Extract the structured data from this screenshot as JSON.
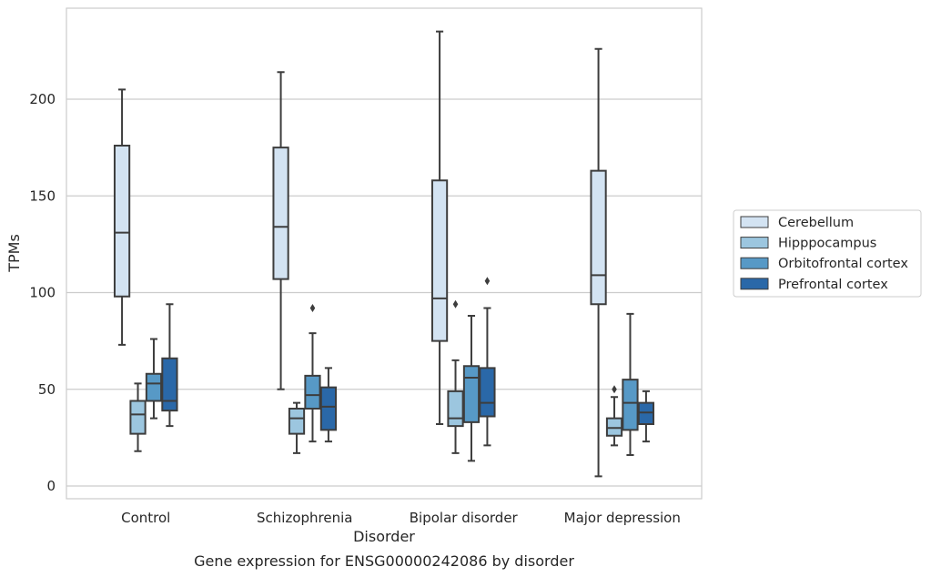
{
  "chart_data": {
    "type": "box",
    "caption": "Gene expression for ENSG00000242086 by disorder",
    "xlabel": "Disorder",
    "ylabel": "TPMs",
    "ylim": [
      -6,
      247
    ],
    "yticks": [
      0,
      50,
      100,
      150,
      200
    ],
    "grid": "horizontal",
    "legend_position": "right",
    "categories": [
      "Control",
      "Schizophrenia",
      "Bipolar disorder",
      "Major depression"
    ],
    "series": [
      {
        "name": "Cerebellum",
        "color": "#d3e3f2",
        "boxes": [
          {
            "whisker_low": 73,
            "q1": 98,
            "median": 131,
            "q3": 176,
            "whisker_high": 205,
            "outliers": []
          },
          {
            "whisker_low": 50,
            "q1": 107,
            "median": 134,
            "q3": 175,
            "whisker_high": 214,
            "outliers": []
          },
          {
            "whisker_low": 32,
            "q1": 75,
            "median": 97,
            "q3": 158,
            "whisker_high": 235,
            "outliers": []
          },
          {
            "whisker_low": 5,
            "q1": 94,
            "median": 109,
            "q3": 163,
            "whisker_high": 226,
            "outliers": []
          }
        ]
      },
      {
        "name": "Hipppocampus",
        "color": "#9cc6df",
        "boxes": [
          {
            "whisker_low": 18,
            "q1": 27,
            "median": 37,
            "q3": 44,
            "whisker_high": 53,
            "outliers": []
          },
          {
            "whisker_low": 17,
            "q1": 27,
            "median": 35,
            "q3": 40,
            "whisker_high": 43,
            "outliers": []
          },
          {
            "whisker_low": 17,
            "q1": 31,
            "median": 35,
            "q3": 49,
            "whisker_high": 65,
            "outliers": [
              94
            ]
          },
          {
            "whisker_low": 21,
            "q1": 26,
            "median": 30,
            "q3": 35,
            "whisker_high": 46,
            "outliers": [
              50
            ]
          }
        ]
      },
      {
        "name": "Orbitofrontal cortex",
        "color": "#5799c6",
        "boxes": [
          {
            "whisker_low": 35,
            "q1": 44,
            "median": 53,
            "q3": 58,
            "whisker_high": 76,
            "outliers": []
          },
          {
            "whisker_low": 23,
            "q1": 40,
            "median": 47,
            "q3": 57,
            "whisker_high": 79,
            "outliers": [
              92
            ]
          },
          {
            "whisker_low": 13,
            "q1": 33,
            "median": 56,
            "q3": 62,
            "whisker_high": 88,
            "outliers": []
          },
          {
            "whisker_low": 16,
            "q1": 29,
            "median": 43,
            "q3": 55,
            "whisker_high": 89,
            "outliers": []
          }
        ]
      },
      {
        "name": "Prefrontal cortex",
        "color": "#2a68a8",
        "boxes": [
          {
            "whisker_low": 31,
            "q1": 39,
            "median": 44,
            "q3": 66,
            "whisker_high": 94,
            "outliers": []
          },
          {
            "whisker_low": 23,
            "q1": 29,
            "median": 41,
            "q3": 51,
            "whisker_high": 61,
            "outliers": []
          },
          {
            "whisker_low": 21,
            "q1": 36,
            "median": 43,
            "q3": 61,
            "whisker_high": 92,
            "outliers": [
              106
            ]
          },
          {
            "whisker_low": 23,
            "q1": 32,
            "median": 38,
            "q3": 43,
            "whisker_high": 49,
            "outliers": []
          }
        ]
      }
    ]
  }
}
